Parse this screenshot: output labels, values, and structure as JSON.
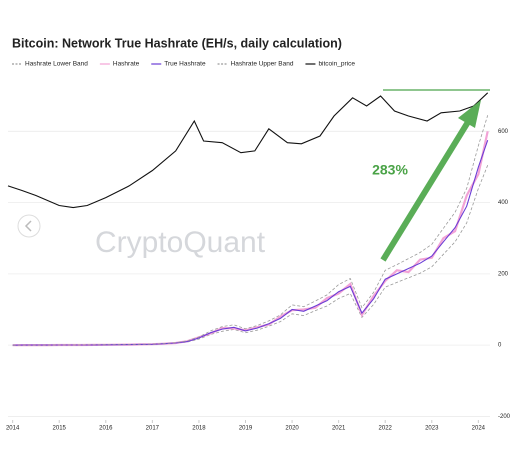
{
  "chart_data": {
    "type": "line",
    "title": "Bitcoin: Network True Hashrate (EH/s, daily calculation)",
    "watermark": "CryptoQuant",
    "annotation": "283%",
    "xlim": [
      2013.9,
      2024.25
    ],
    "xticks": [
      2014,
      2015,
      2016,
      2017,
      2018,
      2019,
      2020,
      2021,
      2022,
      2023,
      2024
    ],
    "ylim": [
      -210,
      730
    ],
    "yticks": [
      -200,
      0,
      200,
      400,
      600
    ],
    "grid": true,
    "legend": "top",
    "series": [
      {
        "name": "Hashrate Lower Band",
        "color": "#9a9a9a",
        "dashed": true,
        "x": [
          2014,
          2014.25,
          2014.5,
          2014.75,
          2015,
          2015.25,
          2015.5,
          2015.75,
          2016,
          2016.25,
          2016.5,
          2016.75,
          2017,
          2017.25,
          2017.5,
          2017.75,
          2018,
          2018.25,
          2018.5,
          2018.75,
          2019,
          2019.25,
          2019.5,
          2019.75,
          2020,
          2020.25,
          2020.5,
          2020.75,
          2021,
          2021.25,
          2021.5,
          2021.75,
          2022,
          2022.25,
          2022.5,
          2022.75,
          2023,
          2023.25,
          2023.5,
          2023.75,
          2024,
          2024.2
        ],
        "values": [
          0,
          0.1,
          0.2,
          0.3,
          0.4,
          0.4,
          0.4,
          0.6,
          0.9,
          1.1,
          1.3,
          1.8,
          2.2,
          3.5,
          5,
          9,
          17,
          30,
          39,
          44,
          35,
          42,
          53,
          66,
          88,
          83,
          97,
          110,
          131,
          145,
          78,
          114,
          163,
          176,
          189,
          202,
          220,
          255,
          290,
          343,
          440,
          505
        ]
      },
      {
        "name": "Hashrate",
        "color": "#f2a3d6",
        "dashed": false,
        "x": [
          2014,
          2014.25,
          2014.5,
          2014.75,
          2015,
          2015.25,
          2015.5,
          2015.75,
          2016,
          2016.25,
          2016.5,
          2016.75,
          2017,
          2017.25,
          2017.5,
          2017.75,
          2018,
          2018.25,
          2018.5,
          2018.75,
          2019,
          2019.25,
          2019.5,
          2019.75,
          2020,
          2020.25,
          2020.5,
          2020.75,
          2021,
          2021.25,
          2021.5,
          2021.75,
          2022,
          2022.25,
          2022.5,
          2022.75,
          2023,
          2023.25,
          2023.5,
          2023.75,
          2024,
          2024.2
        ],
        "values": [
          0,
          0.1,
          0.2,
          0.3,
          0.4,
          0.4,
          0.5,
          0.7,
          1,
          1.2,
          1.5,
          2,
          2.6,
          4,
          6,
          11,
          22,
          33,
          48,
          47,
          42,
          50,
          58,
          80,
          98,
          100,
          105,
          132,
          145,
          172,
          85,
          138,
          180,
          210,
          205,
          240,
          245,
          300,
          320,
          420,
          480,
          600
        ]
      },
      {
        "name": "True Hashrate",
        "color": "#6a3dd6",
        "dashed": false,
        "x": [
          2014,
          2014.25,
          2014.5,
          2014.75,
          2015,
          2015.25,
          2015.5,
          2015.75,
          2016,
          2016.25,
          2016.5,
          2016.75,
          2017,
          2017.25,
          2017.5,
          2017.75,
          2018,
          2018.25,
          2018.5,
          2018.75,
          2019,
          2019.25,
          2019.5,
          2019.75,
          2020,
          2020.25,
          2020.5,
          2020.75,
          2021,
          2021.25,
          2021.5,
          2021.75,
          2022,
          2022.25,
          2022.5,
          2022.75,
          2023,
          2023.25,
          2023.5,
          2023.75,
          2024,
          2024.2
        ],
        "values": [
          0,
          0.1,
          0.2,
          0.3,
          0.4,
          0.4,
          0.5,
          0.7,
          1,
          1.2,
          1.5,
          2,
          2.5,
          4,
          6,
          10,
          20,
          35,
          45,
          50,
          40,
          48,
          60,
          75,
          100,
          95,
          110,
          125,
          150,
          165,
          90,
          130,
          185,
          200,
          215,
          230,
          250,
          290,
          330,
          390,
          500,
          575
        ]
      },
      {
        "name": "Hashrate Upper Band",
        "color": "#9a9a9a",
        "dashed": true,
        "x": [
          2014,
          2014.25,
          2014.5,
          2014.75,
          2015,
          2015.25,
          2015.5,
          2015.75,
          2016,
          2016.25,
          2016.5,
          2016.75,
          2017,
          2017.25,
          2017.5,
          2017.75,
          2018,
          2018.25,
          2018.5,
          2018.75,
          2019,
          2019.25,
          2019.5,
          2019.75,
          2020,
          2020.25,
          2020.5,
          2020.75,
          2021,
          2021.25,
          2021.5,
          2021.75,
          2022,
          2022.25,
          2022.5,
          2022.75,
          2023,
          2023.25,
          2023.5,
          2023.75,
          2024,
          2024.2
        ],
        "values": [
          0,
          0.1,
          0.2,
          0.3,
          0.5,
          0.5,
          0.6,
          0.8,
          1.1,
          1.4,
          1.7,
          2.3,
          2.9,
          4.5,
          7,
          12,
          23,
          40,
          52,
          57,
          46,
          55,
          68,
          85,
          113,
          108,
          124,
          141,
          170,
          187,
          105,
          148,
          210,
          226,
          243,
          260,
          283,
          328,
          373,
          440,
          560,
          645
        ]
      },
      {
        "name": "bitcoin_price",
        "color": "#111111",
        "dashed": false,
        "x": [
          2013.9,
          2014.2,
          2014.5,
          2015,
          2015.3,
          2015.6,
          2016,
          2016.5,
          2017,
          2017.5,
          2017.9,
          2018.1,
          2018.5,
          2018.9,
          2019.2,
          2019.5,
          2019.9,
          2020.2,
          2020.6,
          2020.9,
          2021.3,
          2021.6,
          2021.9,
          2022.2,
          2022.5,
          2022.9,
          2023.2,
          2023.6,
          2023.9,
          2024.2
        ],
        "values": [
          447,
          434,
          420,
          392,
          386,
          392,
          414,
          447,
          490,
          545,
          629,
          573,
          568,
          540,
          545,
          607,
          568,
          565,
          587,
          643,
          694,
          671,
          699,
          657,
          643,
          629,
          652,
          657,
          671,
          708
        ]
      }
    ]
  }
}
